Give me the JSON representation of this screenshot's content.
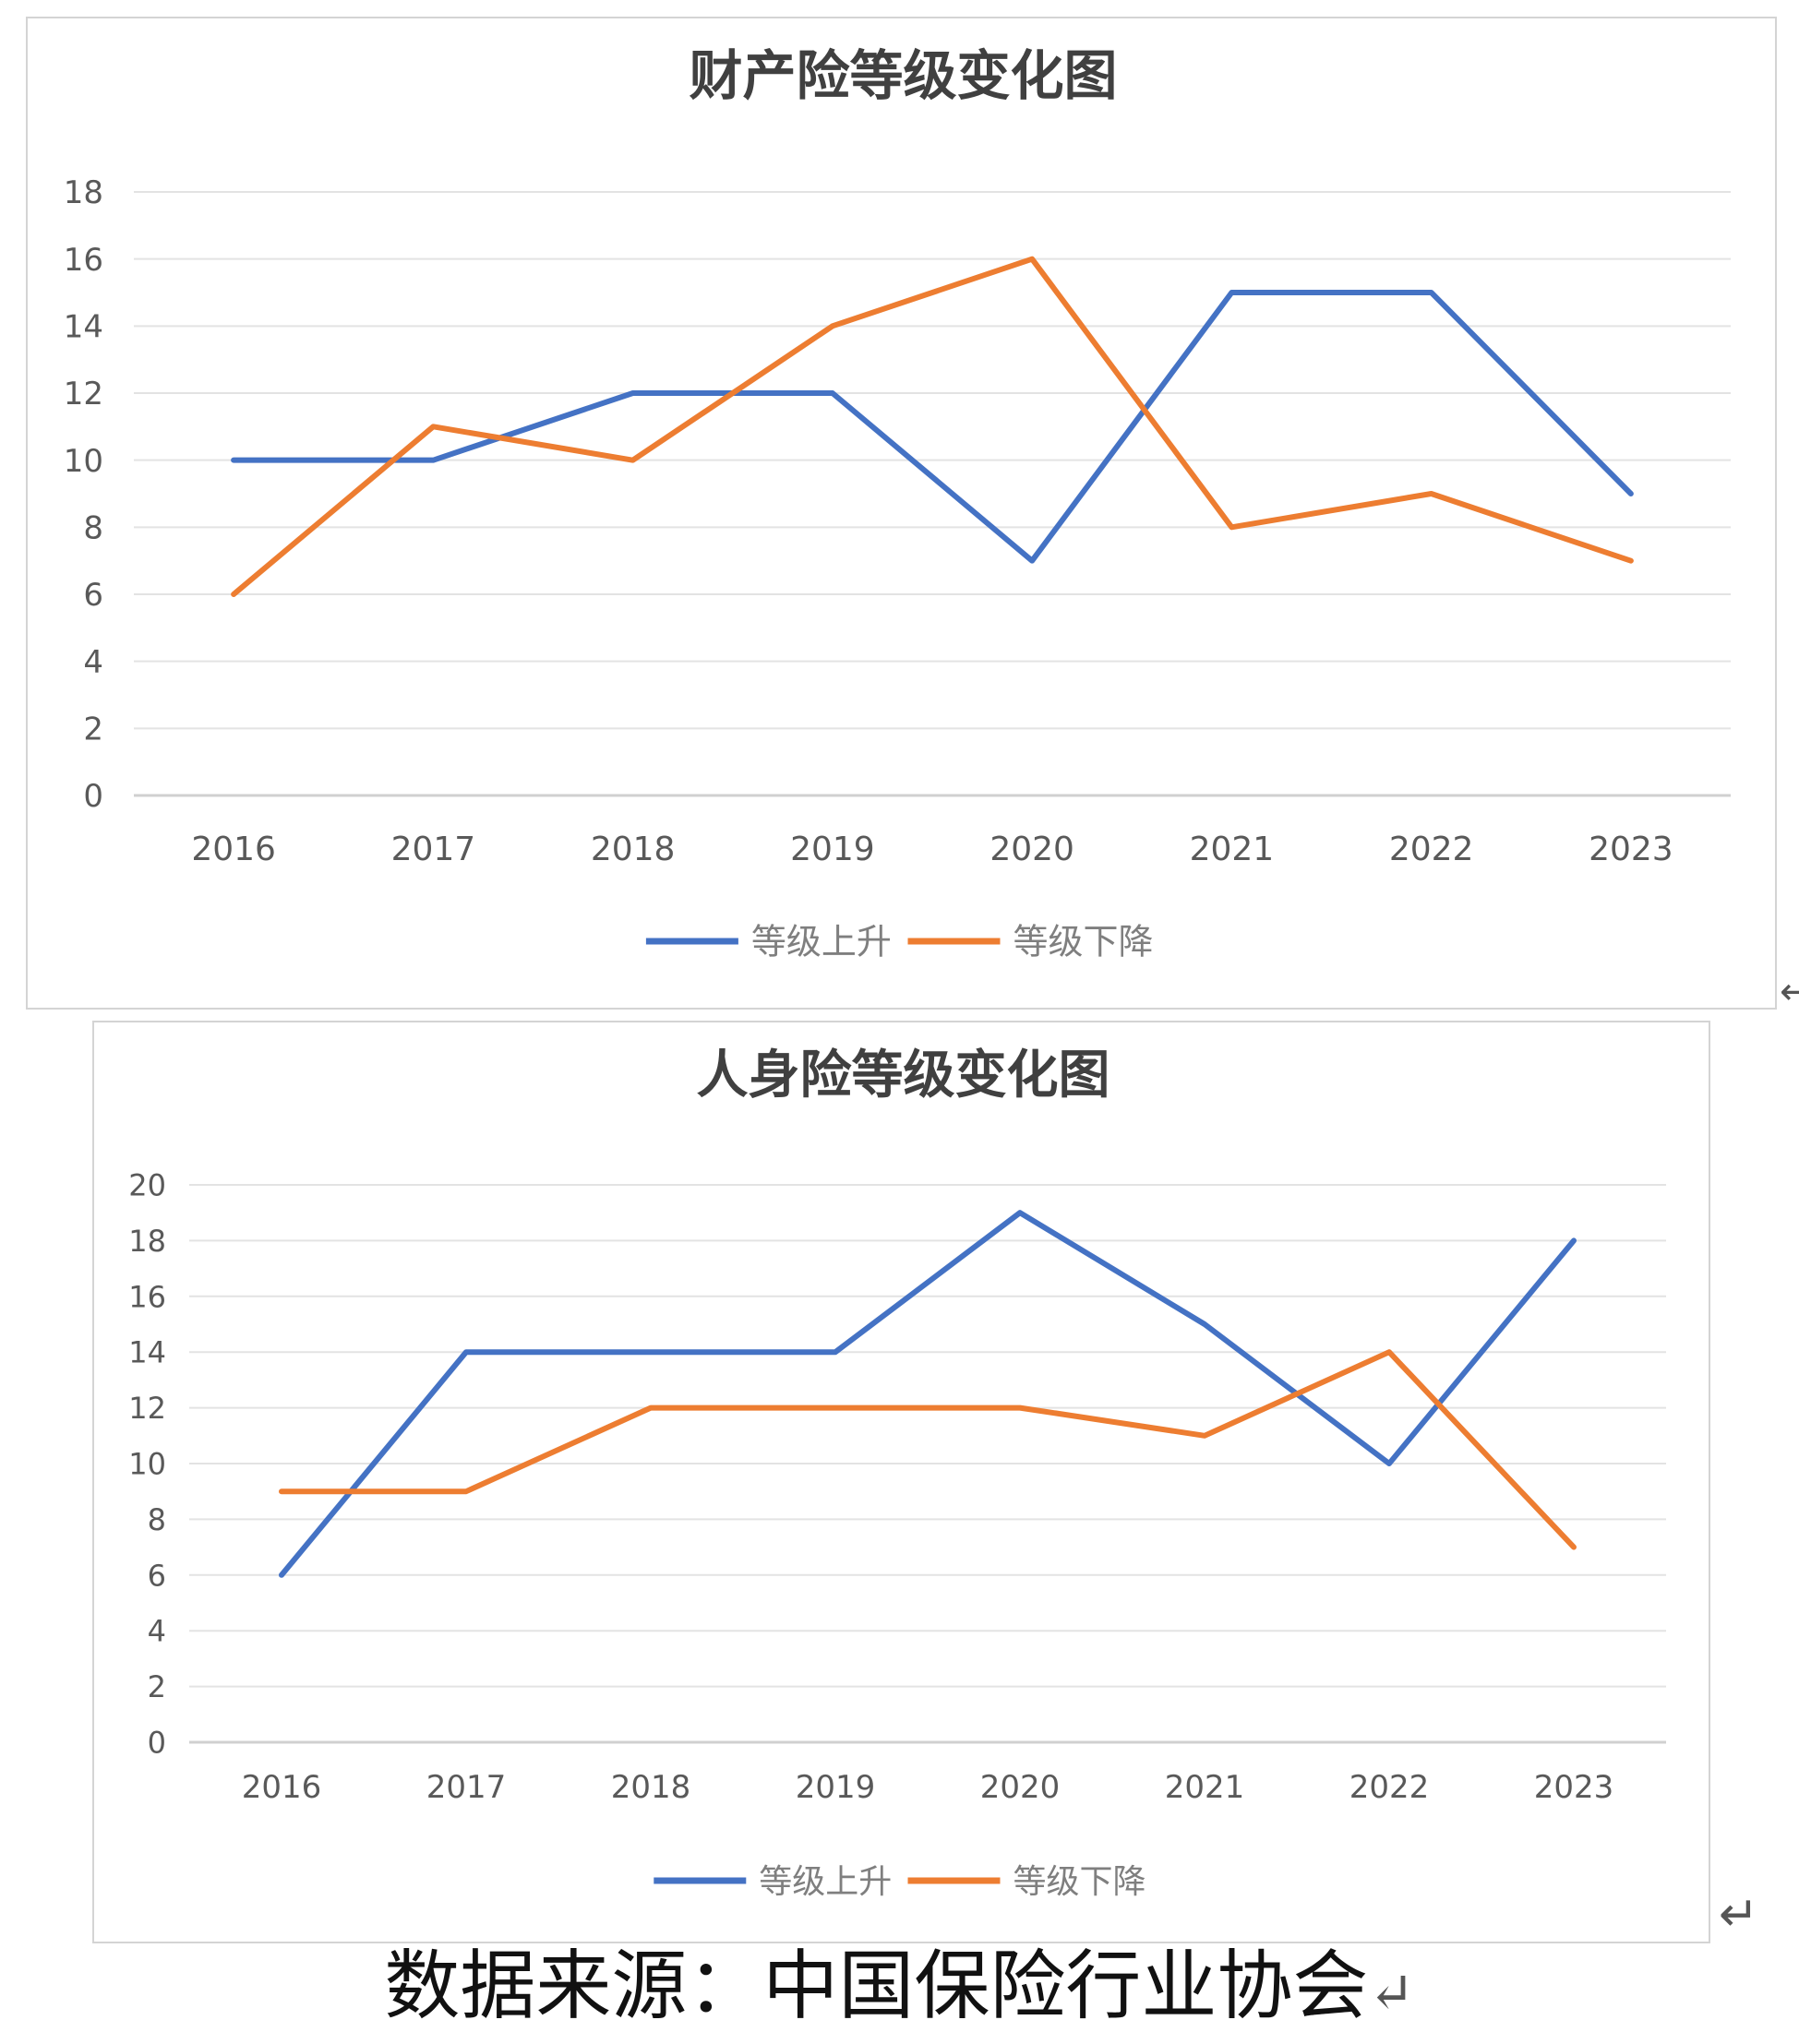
{
  "chart_data": [
    {
      "type": "line",
      "title": "财产险等级变化图",
      "categories": [
        "2016",
        "2017",
        "2018",
        "2019",
        "2020",
        "2021",
        "2022",
        "2023"
      ],
      "series": [
        {
          "name": "等级上升",
          "color": "#4472C4",
          "values": [
            10,
            10,
            12,
            12,
            7,
            15,
            15,
            9
          ]
        },
        {
          "name": "等级下降",
          "color": "#ED7D31",
          "values": [
            6,
            11,
            10,
            14,
            16,
            8,
            9,
            7
          ]
        }
      ],
      "ylim": [
        0,
        18
      ],
      "yticks": [
        "0",
        "2",
        "4",
        "6",
        "8",
        "10",
        "12",
        "14",
        "16",
        "18"
      ],
      "xlabel": "",
      "ylabel": "",
      "grid": true,
      "legend": "bottom"
    },
    {
      "type": "line",
      "title": "人身险等级变化图",
      "categories": [
        "2016",
        "2017",
        "2018",
        "2019",
        "2020",
        "2021",
        "2022",
        "2023"
      ],
      "series": [
        {
          "name": "等级上升",
          "color": "#4472C4",
          "values": [
            6,
            14,
            14,
            14,
            19,
            15,
            10,
            18
          ]
        },
        {
          "name": "等级下降",
          "color": "#ED7D31",
          "values": [
            9,
            9,
            12,
            12,
            12,
            11,
            14,
            7
          ]
        }
      ],
      "ylim": [
        0,
        20
      ],
      "yticks": [
        "0",
        "2",
        "4",
        "6",
        "8",
        "10",
        "12",
        "14",
        "16",
        "18",
        "20"
      ],
      "xlabel": "",
      "ylabel": "",
      "grid": true,
      "legend": "bottom"
    }
  ],
  "source_text": "数据来源：中国保险行业协会",
  "return_mark": "↵"
}
